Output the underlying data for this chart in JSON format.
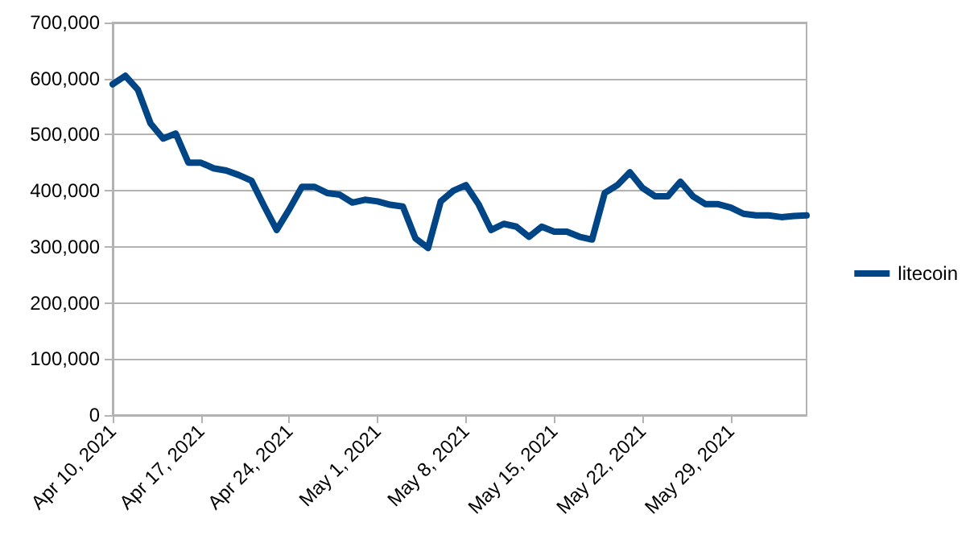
{
  "chart_data": {
    "type": "line",
    "x": [
      "2021-04-10",
      "2021-04-11",
      "2021-04-12",
      "2021-04-13",
      "2021-04-14",
      "2021-04-15",
      "2021-04-16",
      "2021-04-17",
      "2021-04-18",
      "2021-04-19",
      "2021-04-20",
      "2021-04-21",
      "2021-04-22",
      "2021-04-23",
      "2021-04-24",
      "2021-04-25",
      "2021-04-26",
      "2021-04-27",
      "2021-04-28",
      "2021-04-29",
      "2021-04-30",
      "2021-05-01",
      "2021-05-02",
      "2021-05-03",
      "2021-05-04",
      "2021-05-05",
      "2021-05-06",
      "2021-05-07",
      "2021-05-08",
      "2021-05-09",
      "2021-05-10",
      "2021-05-11",
      "2021-05-12",
      "2021-05-13",
      "2021-05-14",
      "2021-05-15",
      "2021-05-16",
      "2021-05-17",
      "2021-05-18",
      "2021-05-19",
      "2021-05-20",
      "2021-05-21",
      "2021-05-22",
      "2021-05-23",
      "2021-05-24",
      "2021-05-25",
      "2021-05-26",
      "2021-05-27",
      "2021-05-28",
      "2021-05-29",
      "2021-05-30",
      "2021-05-31",
      "2021-06-01",
      "2021-06-02",
      "2021-06-03",
      "2021-06-04"
    ],
    "series": [
      {
        "name": "litecoin",
        "color": "#004586",
        "values": [
          590000,
          605000,
          580000,
          520000,
          493000,
          502000,
          450000,
          450000,
          440000,
          436000,
          428000,
          418000,
          373000,
          330000,
          367000,
          407000,
          407000,
          396000,
          393000,
          379000,
          384000,
          381000,
          375000,
          372000,
          315000,
          298000,
          381000,
          400000,
          410000,
          376000,
          330000,
          341000,
          336000,
          318000,
          336000,
          327000,
          327000,
          318000,
          313000,
          396000,
          410000,
          433000,
          405000,
          390000,
          390000,
          416000,
          390000,
          376000,
          376000,
          370000,
          359000,
          356000,
          356000,
          353000,
          355000,
          356000
        ]
      }
    ],
    "xlim": [
      "2021-04-10",
      "2021-06-04"
    ],
    "xticks": [
      {
        "value": "2021-04-10",
        "label": "Apr 10, 2021"
      },
      {
        "value": "2021-04-17",
        "label": "Apr 17, 2021"
      },
      {
        "value": "2021-04-24",
        "label": "Apr 24, 2021"
      },
      {
        "value": "2021-05-01",
        "label": "May 1, 2021"
      },
      {
        "value": "2021-05-08",
        "label": "May 8, 2021"
      },
      {
        "value": "2021-05-15",
        "label": "May 15, 2021"
      },
      {
        "value": "2021-05-22",
        "label": "May 22, 2021"
      },
      {
        "value": "2021-05-29",
        "label": "May 29, 2021"
      }
    ],
    "ylim": [
      0,
      700000
    ],
    "yticks": [
      {
        "value": 0,
        "label": "0"
      },
      {
        "value": 100000,
        "label": "100,000"
      },
      {
        "value": 200000,
        "label": "200,000"
      },
      {
        "value": 300000,
        "label": "300,000"
      },
      {
        "value": 400000,
        "label": "400,000"
      },
      {
        "value": 500000,
        "label": "500,000"
      },
      {
        "value": 600000,
        "label": "600,000"
      },
      {
        "value": 700000,
        "label": "700,000"
      }
    ],
    "grid": "y",
    "legend": "right",
    "marker": "none",
    "line_style": "solid"
  }
}
